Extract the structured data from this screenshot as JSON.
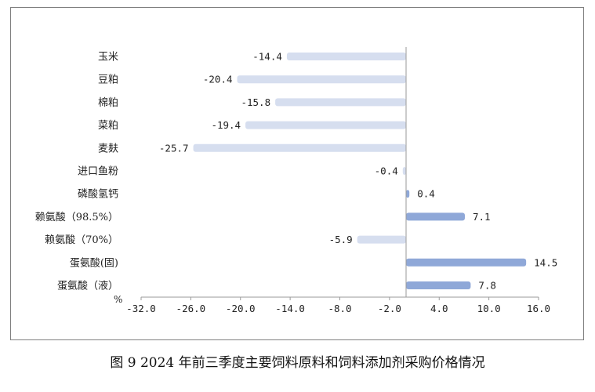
{
  "caption": "图 9   2024 年前三季度主要饲料原料和饲料添加剂采购价格情况",
  "chart_data": {
    "type": "bar",
    "orientation": "horizontal",
    "categories": [
      "玉米",
      "豆粕",
      "棉粕",
      "菜粕",
      "麦麸",
      "进口鱼粉",
      "磷酸氢钙",
      "赖氨酸（98.5%）",
      "赖氨酸（70%）",
      "蛋氨酸(固)",
      "蛋氨酸（液）"
    ],
    "values": [
      -14.4,
      -20.4,
      -15.8,
      -19.4,
      -25.7,
      -0.4,
      0.4,
      7.1,
      -5.9,
      14.5,
      7.8
    ],
    "value_labels": [
      "-14.4",
      "-20.4",
      "-15.8",
      "-19.4",
      "-25.7",
      "-0.4",
      "0.4",
      "7.1",
      "-5.9",
      "14.5",
      "7.8"
    ],
    "xticks": [
      -32,
      -26,
      -20,
      -14,
      -8,
      -2,
      4,
      10,
      16
    ],
    "xtick_labels": [
      "-32.0",
      "-26.0",
      "-20.0",
      "-14.0",
      "-8.0",
      "-2.0",
      "4.0",
      "10.0",
      "16.0"
    ],
    "xlim": [
      -32,
      16
    ],
    "unit": "%",
    "grid": false,
    "colors": {
      "negative": "#d6deef",
      "positive": "#8fa8d8",
      "axis": "#9a9a9a"
    }
  }
}
